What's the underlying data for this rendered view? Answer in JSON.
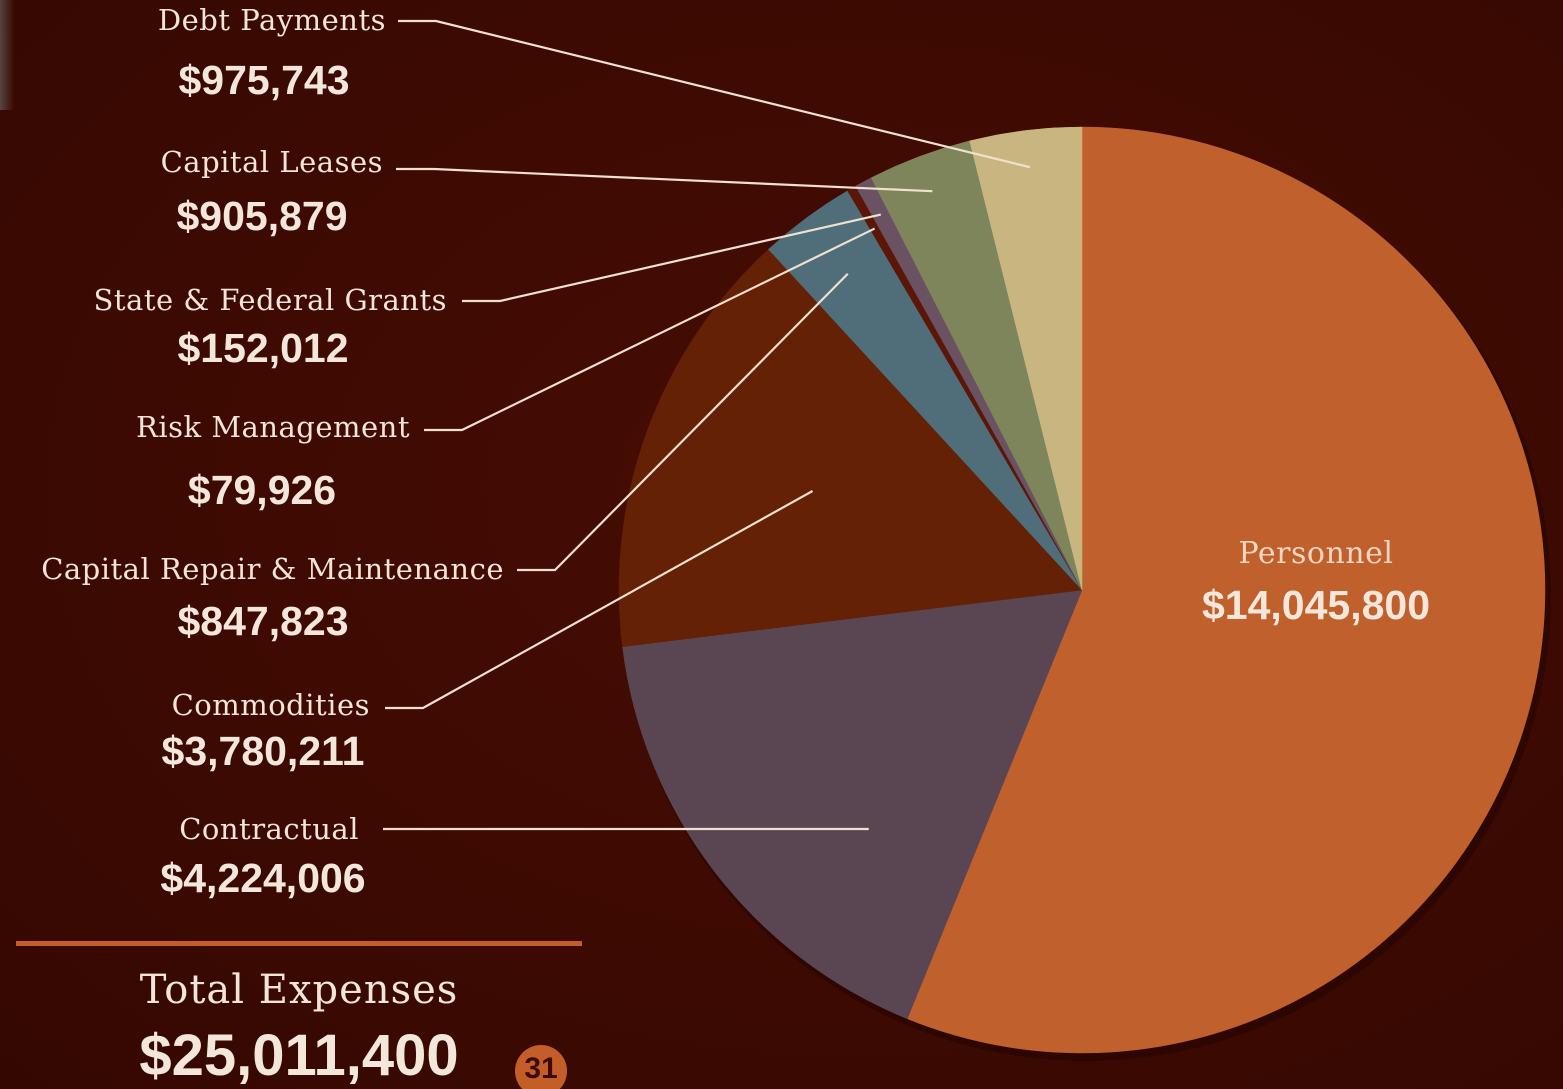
{
  "chart_data": {
    "type": "pie",
    "slices": [
      {
        "label": "Personnel",
        "value": 14045800,
        "value_text": "$14,045,800",
        "color": "#c0602c"
      },
      {
        "label": "Contractual",
        "value": 4224006,
        "value_text": "$4,224,006",
        "color": "#5a4652"
      },
      {
        "label": "Commodities",
        "value": 3780211,
        "value_text": "$3,780,211",
        "color": "#652106"
      },
      {
        "label": "Capital Repair & Maintenance",
        "value": 847823,
        "value_text": "$847,823",
        "color": "#4f6e7a"
      },
      {
        "label": "Risk Management",
        "value": 79926,
        "value_text": "$79,926",
        "color": "#5c1608"
      },
      {
        "label": "State & Federal Grants",
        "value": 152012,
        "value_text": "$152,012",
        "color": "#6a5262"
      },
      {
        "label": "Capital Leases",
        "value": 905879,
        "value_text": "$905,879",
        "color": "#7f855a"
      },
      {
        "label": "Debt Payments",
        "value": 975743,
        "value_text": "$975,743",
        "color": "#c9b57f"
      }
    ],
    "total_label": "Total Expenses",
    "total_value": "$25,011,400"
  },
  "page_number": "31",
  "colors": {
    "background": "#3d0a02",
    "accent": "#c45e28",
    "text": "#f1e4d8",
    "leader_line": "#efe0d0"
  }
}
